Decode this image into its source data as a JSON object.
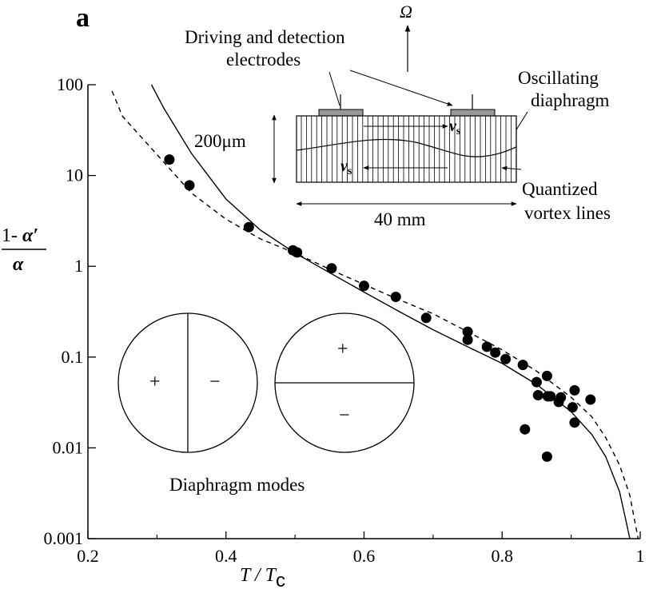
{
  "figure": {
    "panel_label": "a"
  },
  "chart_data": {
    "type": "scatter",
    "title": "",
    "xlabel": "T / Tc",
    "xlabel_main": "T / T",
    "xlabel_sub": "c",
    "ylabel": "(1 − α′) / α",
    "ylabel_num_prefix": "1- ",
    "ylabel_num_symbol": "α′",
    "ylabel_den_symbol": "α",
    "xlim": [
      0.2,
      1.0
    ],
    "ylim": [
      0.001,
      100
    ],
    "yscale": "log",
    "x_ticks": [
      0.2,
      0.4,
      0.6,
      0.8,
      1.0
    ],
    "x_tick_labels": [
      "0.2",
      "0.4",
      "0.6",
      "0.8",
      "1"
    ],
    "y_ticks": [
      0.001,
      0.01,
      0.1,
      1,
      10,
      100
    ],
    "y_tick_labels": [
      "0.001",
      "0.01",
      "0.1",
      "1",
      "10",
      "100"
    ],
    "grid": false,
    "points": {
      "name": "measured",
      "x": [
        0.318,
        0.347,
        0.433,
        0.497,
        0.503,
        0.553,
        0.6,
        0.646,
        0.69,
        0.75,
        0.75,
        0.778,
        0.79,
        0.805,
        0.83,
        0.833,
        0.85,
        0.852,
        0.865,
        0.866,
        0.865,
        0.87,
        0.882,
        0.885,
        0.902,
        0.905,
        0.905,
        0.928
      ],
      "y": [
        15.0,
        7.8,
        2.7,
        1.5,
        1.42,
        0.95,
        0.61,
        0.46,
        0.27,
        0.19,
        0.155,
        0.13,
        0.112,
        0.095,
        0.082,
        0.016,
        0.053,
        0.038,
        0.062,
        0.037,
        0.008,
        0.037,
        0.032,
        0.036,
        0.028,
        0.043,
        0.019,
        0.034
      ]
    },
    "curves": [
      {
        "name": "theory-solid",
        "style": "solid",
        "x": [
          0.292,
          0.31,
          0.35,
          0.4,
          0.45,
          0.5,
          0.55,
          0.6,
          0.65,
          0.7,
          0.75,
          0.8,
          0.85,
          0.9,
          0.93,
          0.95,
          0.97,
          0.98,
          0.985
        ],
        "y": [
          100,
          55,
          17.5,
          5.5,
          2.5,
          1.4,
          0.85,
          0.52,
          0.32,
          0.2,
          0.13,
          0.085,
          0.05,
          0.025,
          0.014,
          0.008,
          0.0033,
          0.0015,
          0.001
        ]
      },
      {
        "name": "theory-dashed",
        "style": "dashed",
        "x": [
          0.235,
          0.25,
          0.3,
          0.35,
          0.4,
          0.45,
          0.5,
          0.55,
          0.6,
          0.65,
          0.7,
          0.75,
          0.8,
          0.85,
          0.9,
          0.93,
          0.95,
          0.97,
          0.985,
          0.997
        ],
        "y": [
          85,
          45,
          17,
          6.4,
          3.3,
          2.0,
          1.4,
          0.93,
          0.63,
          0.43,
          0.3,
          0.19,
          0.12,
          0.07,
          0.036,
          0.022,
          0.013,
          0.0065,
          0.003,
          0.001
        ]
      }
    ]
  },
  "inset": {
    "omega_label": "Ω",
    "electrodes_label_line1": "Driving and detection",
    "electrodes_label_line2": "electrodes",
    "diaphragm_label_line1": "Oscillating",
    "diaphragm_label_line2": "diaphragm",
    "thickness_label": "200μm",
    "width_label": "40 mm",
    "vortex_label_line1": "Quantized",
    "vortex_label_line2": "vortex lines",
    "vs_symbol": "v",
    "vs_subscript": "s"
  },
  "modes": {
    "caption": "Diaphragm modes",
    "plus": "+",
    "minus": "−"
  }
}
